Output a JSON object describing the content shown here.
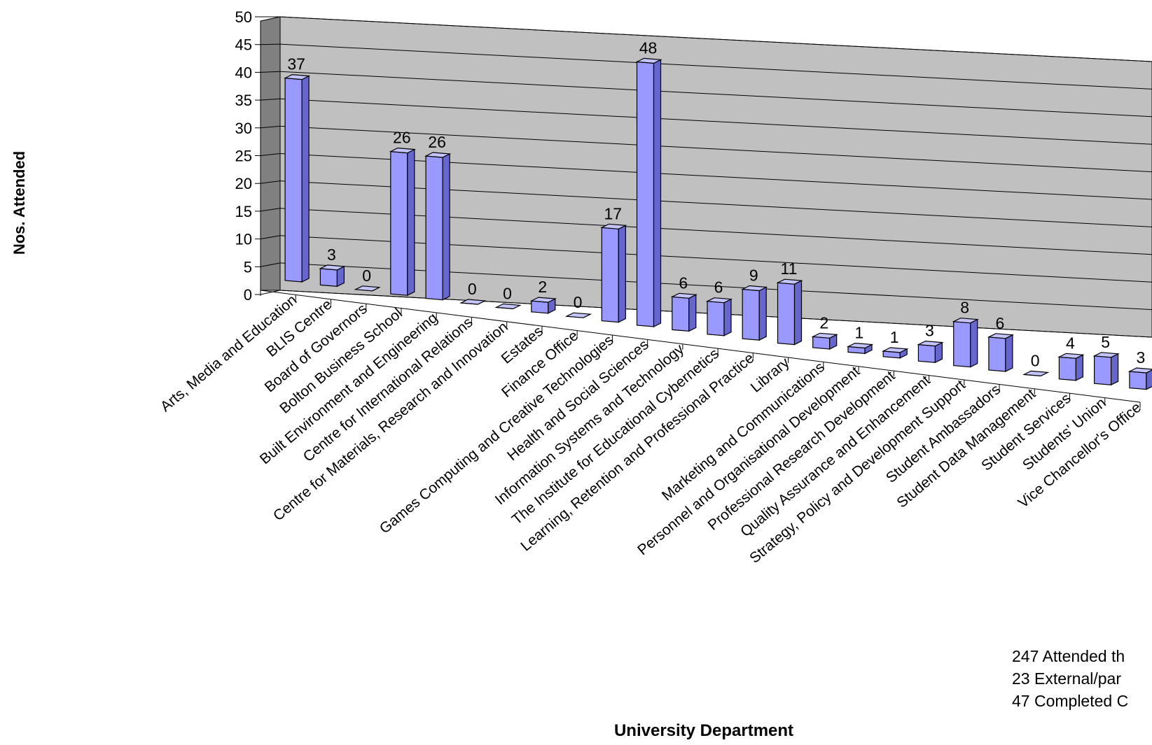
{
  "chart_data": {
    "type": "bar",
    "ylabel": "Nos. Attended",
    "xlabel": "University Department",
    "ylim": [
      0,
      50
    ],
    "yticks": [
      "0",
      "5",
      "10",
      "15",
      "20",
      "25",
      "30",
      "35",
      "40",
      "45",
      "50"
    ],
    "grid": true,
    "categories": [
      "Arts, Media and Education",
      "BLIS Centre",
      "Board of Governors",
      "Bolton Business School",
      "Built Environment and Engineering",
      "Centre for International Relations",
      "Centre for Materials, Research and Innovation",
      "Estates",
      "Finance Office",
      "Games Computing and Creative Technologies",
      "Health and Social Sciences",
      "Information Systems and Technology",
      "The Institute for Educational Cybernetics",
      "Learning, Retention and Professional Practice",
      "Library",
      "Marketing and Communications",
      "Personnel and Organisational Development",
      "Professional Research Development",
      "Quality Assurance and Enhancement",
      "Strategy, Policy and Development Support",
      "Student Ambassadors",
      "Student Data Management",
      "Student Services",
      "Students' Union",
      "Vice Chancellor's Office"
    ],
    "values": [
      37,
      3,
      0,
      26,
      26,
      0,
      0,
      2,
      0,
      17,
      48,
      6,
      6,
      9,
      11,
      2,
      1,
      1,
      3,
      8,
      6,
      0,
      4,
      5,
      3
    ],
    "colors": {
      "bar_front": "#9999ff",
      "bar_side": "#6666cc",
      "bar_top": "#c4c4ff",
      "wall": "#c0c0c0",
      "wall_side": "#808080"
    },
    "notes": [
      "247 Attended th",
      "23 External/par",
      "47 Completed C"
    ]
  }
}
